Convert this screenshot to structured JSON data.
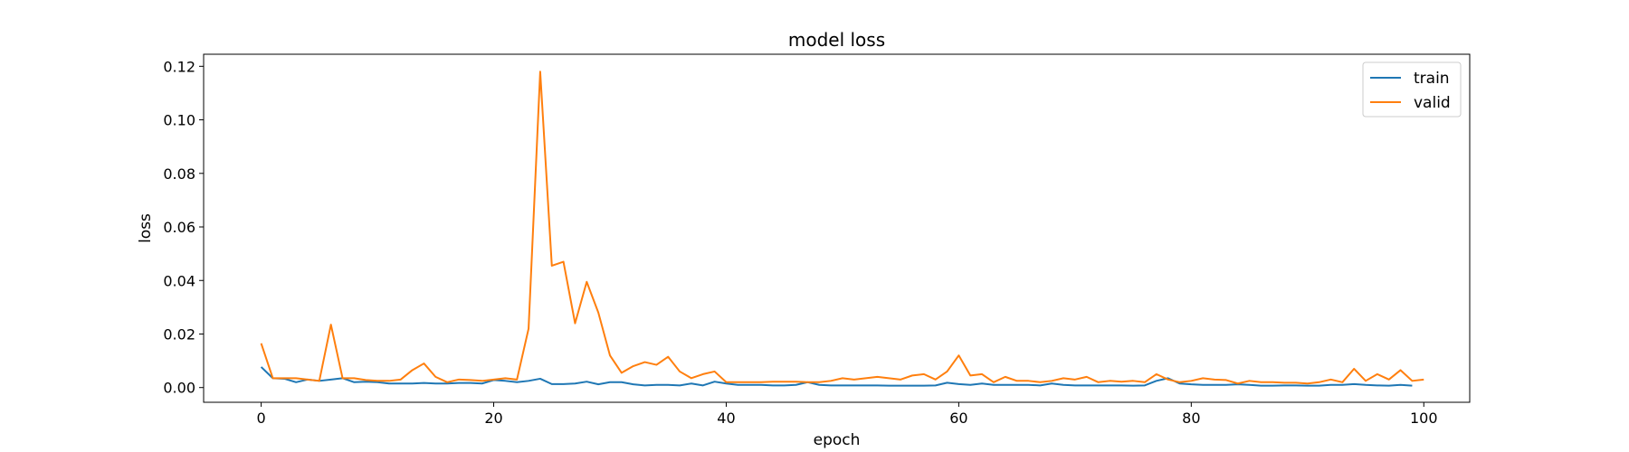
{
  "chart_data": {
    "type": "line",
    "title": "model loss",
    "xlabel": "epoch",
    "ylabel": "loss",
    "xlim": [
      -4.95,
      103.95
    ],
    "ylim": [
      -0.0055,
      0.1245
    ],
    "x_ticks": [
      0,
      20,
      40,
      60,
      80,
      100
    ],
    "x_tick_labels": [
      "0",
      "20",
      "40",
      "60",
      "80",
      "100"
    ],
    "y_ticks": [
      0.0,
      0.02,
      0.04,
      0.06,
      0.08,
      0.1,
      0.12
    ],
    "y_tick_labels": [
      "0.00",
      "0.02",
      "0.04",
      "0.06",
      "0.08",
      "0.10",
      "0.12"
    ],
    "grid": false,
    "legend_position": "upper-right",
    "series": [
      {
        "name": "train",
        "color": "#1f77b4",
        "values": [
          0.0077,
          0.0035,
          0.0033,
          0.002,
          0.003,
          0.0025,
          0.003,
          0.0035,
          0.002,
          0.0022,
          0.002,
          0.0015,
          0.0015,
          0.0015,
          0.0017,
          0.0015,
          0.0015,
          0.0017,
          0.0017,
          0.0015,
          0.0028,
          0.0025,
          0.002,
          0.0025,
          0.0033,
          0.0013,
          0.0013,
          0.0015,
          0.0022,
          0.0012,
          0.002,
          0.002,
          0.0012,
          0.0008,
          0.001,
          0.001,
          0.0008,
          0.0015,
          0.0008,
          0.0022,
          0.0015,
          0.001,
          0.001,
          0.001,
          0.0008,
          0.0008,
          0.001,
          0.002,
          0.001,
          0.0008,
          0.0008,
          0.0008,
          0.0008,
          0.0008,
          0.0007,
          0.0007,
          0.0007,
          0.0007,
          0.0008,
          0.0018,
          0.0013,
          0.001,
          0.0015,
          0.001,
          0.001,
          0.001,
          0.001,
          0.0008,
          0.0015,
          0.001,
          0.0008,
          0.0008,
          0.0008,
          0.0008,
          0.0008,
          0.0007,
          0.0008,
          0.0025,
          0.0035,
          0.0015,
          0.0012,
          0.001,
          0.001,
          0.001,
          0.0012,
          0.001,
          0.0007,
          0.0007,
          0.0008,
          0.0008,
          0.0007,
          0.0007,
          0.001,
          0.001,
          0.0013,
          0.001,
          0.0008,
          0.0007,
          0.001,
          0.0007
        ]
      },
      {
        "name": "valid",
        "color": "#ff7f0e",
        "values": [
          0.0165,
          0.0035,
          0.0035,
          0.0035,
          0.003,
          0.0025,
          0.0235,
          0.0035,
          0.0035,
          0.0028,
          0.0025,
          0.0025,
          0.003,
          0.0065,
          0.009,
          0.004,
          0.002,
          0.003,
          0.0028,
          0.0025,
          0.003,
          0.0035,
          0.003,
          0.022,
          0.118,
          0.0455,
          0.047,
          0.024,
          0.0395,
          0.028,
          0.012,
          0.0055,
          0.008,
          0.0095,
          0.0085,
          0.0115,
          0.006,
          0.0035,
          0.005,
          0.006,
          0.002,
          0.002,
          0.002,
          0.002,
          0.0022,
          0.0022,
          0.0022,
          0.002,
          0.002,
          0.0025,
          0.0035,
          0.003,
          0.0035,
          0.004,
          0.0035,
          0.003,
          0.0045,
          0.005,
          0.003,
          0.006,
          0.012,
          0.0045,
          0.005,
          0.002,
          0.004,
          0.0025,
          0.0025,
          0.002,
          0.0025,
          0.0035,
          0.003,
          0.004,
          0.002,
          0.0025,
          0.0022,
          0.0025,
          0.002,
          0.005,
          0.003,
          0.002,
          0.0025,
          0.0035,
          0.003,
          0.0028,
          0.0015,
          0.0025,
          0.002,
          0.002,
          0.0018,
          0.0018,
          0.0015,
          0.002,
          0.003,
          0.002,
          0.007,
          0.0025,
          0.005,
          0.003,
          0.0065,
          0.0025,
          0.003
        ]
      }
    ]
  }
}
